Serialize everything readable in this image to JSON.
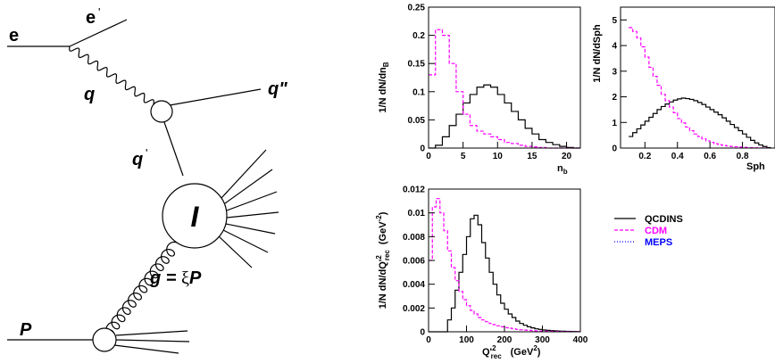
{
  "diagram": {
    "labels": {
      "e_in": "e",
      "e_out": "e",
      "e_out_prime": "'",
      "photon": "q",
      "quark_out": "q\"",
      "quark_in": "q",
      "quark_in_prime": "'",
      "instanton": "I",
      "gluon": "g = ",
      "gluon_xi": "ξ",
      "gluon_P": "P",
      "proton": "P"
    }
  },
  "legend": {
    "entries": [
      {
        "name": "QCDINS",
        "color": "#000000",
        "dash": "solid"
      },
      {
        "name": "CDM",
        "color": "#ff00ff",
        "dash": "dashed"
      },
      {
        "name": "MEPS",
        "color": "#0000ff",
        "dash": "dotted"
      }
    ]
  },
  "chart_data": [
    {
      "type": "line",
      "step": true,
      "ylabel": "1/N dN/dn",
      "ylabel_sub": "B",
      "xlabel": "n",
      "xlabel_sub": "b",
      "xlim": [
        0,
        22
      ],
      "ylim": [
        0,
        0.25
      ],
      "xticks": [
        0,
        5,
        10,
        15,
        20
      ],
      "xtick_labels": [
        "0",
        "5",
        "10",
        "15",
        "20"
      ],
      "yticks": [
        0,
        0.05,
        0.1,
        0.15,
        0.2,
        0.25
      ],
      "ytick_labels": [
        "0",
        "0.05",
        "0.1",
        "0.15",
        "0.2",
        "0.25"
      ],
      "bin_width": 1,
      "series": [
        {
          "name": "QCDINS",
          "x": [
            0,
            1,
            2,
            3,
            4,
            5,
            6,
            7,
            8,
            9,
            10,
            11,
            12,
            13,
            14,
            15,
            16,
            17,
            18,
            19,
            20,
            21
          ],
          "values": [
            0,
            0.005,
            0.02,
            0.04,
            0.06,
            0.08,
            0.095,
            0.108,
            0.112,
            0.108,
            0.095,
            0.08,
            0.065,
            0.05,
            0.035,
            0.025,
            0.015,
            0.01,
            0.006,
            0.003,
            0.001,
            0
          ]
        },
        {
          "name": "CDM",
          "x": [
            0,
            1,
            2,
            3,
            4,
            5,
            6,
            7,
            8,
            9,
            10,
            11,
            12,
            13,
            14,
            15,
            16,
            17,
            18,
            19,
            20,
            21
          ],
          "values": [
            0.13,
            0.21,
            0.2,
            0.15,
            0.1,
            0.06,
            0.04,
            0.03,
            0.025,
            0.02,
            0.015,
            0.01,
            0.008,
            0.005,
            0.003,
            0.002,
            0.001,
            0,
            0,
            0,
            0,
            0
          ]
        }
      ]
    },
    {
      "type": "line",
      "step": true,
      "ylabel": "1/N dN/dSph",
      "xlabel": "Sph",
      "xlim": [
        0.05,
        1.0
      ],
      "ylim": [
        0,
        5.5
      ],
      "xticks": [
        0.2,
        0.4,
        0.6,
        0.8
      ],
      "xtick_labels": [
        "0.2",
        "0.4",
        "0.6",
        "0.8"
      ],
      "yticks": [
        0,
        1,
        2,
        3,
        4,
        5
      ],
      "ytick_labels": [
        "0",
        "1",
        "2",
        "3",
        "4",
        "5"
      ],
      "bin_width": 0.025,
      "series": [
        {
          "name": "QCDINS",
          "x": [
            0.1,
            0.125,
            0.15,
            0.175,
            0.2,
            0.225,
            0.25,
            0.275,
            0.3,
            0.325,
            0.35,
            0.375,
            0.4,
            0.425,
            0.45,
            0.475,
            0.5,
            0.525,
            0.55,
            0.575,
            0.6,
            0.625,
            0.65,
            0.675,
            0.7,
            0.725,
            0.75,
            0.775,
            0.8,
            0.825,
            0.85,
            0.875,
            0.9,
            0.925,
            0.95
          ],
          "values": [
            0.45,
            0.6,
            0.75,
            0.9,
            1.05,
            1.2,
            1.35,
            1.5,
            1.62,
            1.72,
            1.8,
            1.87,
            1.92,
            1.95,
            1.93,
            1.9,
            1.85,
            1.78,
            1.7,
            1.6,
            1.5,
            1.4,
            1.3,
            1.18,
            1.05,
            0.92,
            0.8,
            0.68,
            0.55,
            0.42,
            0.3,
            0.2,
            0.12,
            0.06,
            0.02
          ]
        },
        {
          "name": "CDM",
          "x": [
            0.1,
            0.125,
            0.15,
            0.175,
            0.2,
            0.225,
            0.25,
            0.275,
            0.3,
            0.325,
            0.35,
            0.375,
            0.4,
            0.425,
            0.45,
            0.475,
            0.5,
            0.525,
            0.55,
            0.575,
            0.6,
            0.625,
            0.65,
            0.675,
            0.7,
            0.725,
            0.75,
            0.775,
            0.8,
            0.825,
            0.85,
            0.875,
            0.9,
            0.925,
            0.95
          ],
          "values": [
            4.7,
            4.55,
            4.3,
            3.95,
            3.55,
            3.15,
            2.8,
            2.45,
            2.1,
            1.85,
            1.6,
            1.38,
            1.15,
            0.98,
            0.82,
            0.68,
            0.55,
            0.45,
            0.36,
            0.28,
            0.22,
            0.17,
            0.13,
            0.1,
            0.08,
            0.06,
            0.05,
            0.04,
            0.03,
            0.02,
            0.015,
            0.01,
            0.005,
            0.003,
            0.002
          ]
        }
      ]
    },
    {
      "type": "line",
      "step": true,
      "ylabel": "1/N dN/dQ'",
      "ylabel_sup": "2",
      "ylabel_sub": "rec",
      "ylabel_unit": "(GeV",
      "ylabel_unit_sup": "-2",
      "ylabel_unit_close": ")",
      "xlabel": "Q'",
      "xlabel_sup": "2",
      "xlabel_sub": "rec",
      "xlabel_unit": "(GeV",
      "xlabel_unit_sup": "2",
      "xlabel_unit_close": ")",
      "xlim": [
        0,
        400
      ],
      "ylim": [
        0,
        0.012
      ],
      "xticks": [
        0,
        100,
        200,
        300,
        400
      ],
      "xtick_labels": [
        "0",
        "100",
        "200",
        "300",
        "400"
      ],
      "yticks": [
        0,
        0.002,
        0.004,
        0.006,
        0.008,
        0.01,
        0.012
      ],
      "ytick_labels": [
        "0",
        "0.002",
        "0.004",
        "0.006",
        "0.008",
        "0.01",
        "0.012"
      ],
      "bin_width": 10,
      "series": [
        {
          "name": "QCDINS",
          "x": [
            0,
            10,
            20,
            30,
            40,
            50,
            60,
            70,
            80,
            90,
            100,
            110,
            120,
            130,
            140,
            150,
            160,
            170,
            180,
            190,
            200,
            210,
            220,
            230,
            240,
            250,
            260,
            270,
            280,
            290,
            300,
            310,
            320,
            330,
            340,
            350,
            360,
            370,
            380,
            390
          ],
          "values": [
            0,
            0,
            0,
            0,
            0,
            0.001,
            0.002,
            0.0035,
            0.005,
            0.0065,
            0.008,
            0.0095,
            0.0098,
            0.009,
            0.0075,
            0.0062,
            0.005,
            0.004,
            0.0031,
            0.0024,
            0.0019,
            0.0015,
            0.0012,
            0.0009,
            0.0007,
            0.00055,
            0.00042,
            0.00033,
            0.00025,
            0.0002,
            0.00015,
            0.00012,
            0.0001,
            8e-05,
            6e-05,
            5e-05,
            4e-05,
            3e-05,
            2e-05,
            1e-05
          ]
        },
        {
          "name": "CDM",
          "x": [
            0,
            10,
            20,
            30,
            40,
            50,
            60,
            70,
            80,
            90,
            100,
            110,
            120,
            130,
            140,
            150,
            160,
            170,
            180,
            190,
            200,
            210,
            220,
            230,
            240,
            250,
            260,
            270,
            280,
            290,
            300,
            310,
            320,
            330,
            340,
            350,
            360,
            370,
            380,
            390
          ],
          "values": [
            0.006,
            0.0105,
            0.0112,
            0.01,
            0.0085,
            0.0068,
            0.0054,
            0.0043,
            0.0034,
            0.0027,
            0.0022,
            0.0018,
            0.0015,
            0.0012,
            0.001,
            0.00085,
            0.0007,
            0.0006,
            0.0005,
            0.00042,
            0.00035,
            0.0003,
            0.00025,
            0.0002,
            0.00017,
            0.00014,
            0.00012,
            0.0001,
            8e-05,
            7e-05,
            6e-05,
            5e-05,
            4e-05,
            3e-05,
            3e-05,
            2e-05,
            2e-05,
            1e-05,
            1e-05,
            1e-05
          ]
        }
      ]
    }
  ]
}
